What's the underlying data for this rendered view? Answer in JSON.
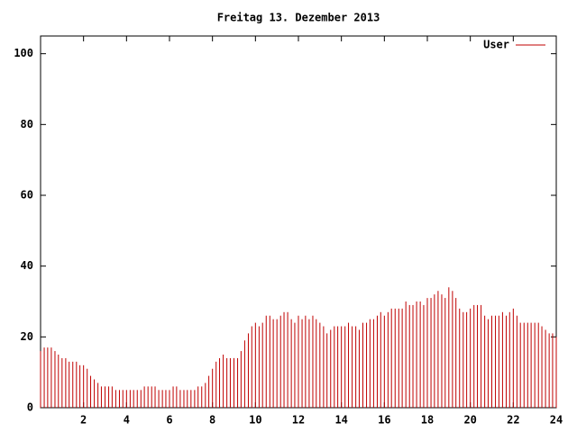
{
  "chart_data": {
    "type": "impulse",
    "title": "Freitag 13. Dezember 2013",
    "x": [
      0,
      0.17,
      0.33,
      0.5,
      0.67,
      0.83,
      1,
      1.17,
      1.33,
      1.5,
      1.67,
      1.83,
      2,
      2.17,
      2.33,
      2.5,
      2.67,
      2.83,
      3,
      3.17,
      3.33,
      3.5,
      3.67,
      3.83,
      4,
      4.17,
      4.33,
      4.5,
      4.67,
      4.83,
      5,
      5.17,
      5.33,
      5.5,
      5.67,
      5.83,
      6,
      6.17,
      6.33,
      6.5,
      6.67,
      6.83,
      7,
      7.17,
      7.33,
      7.5,
      7.67,
      7.83,
      8,
      8.17,
      8.33,
      8.5,
      8.67,
      8.83,
      9,
      9.17,
      9.33,
      9.5,
      9.67,
      9.83,
      10,
      10.17,
      10.33,
      10.5,
      10.67,
      10.83,
      11,
      11.17,
      11.33,
      11.5,
      11.67,
      11.83,
      12,
      12.17,
      12.33,
      12.5,
      12.67,
      12.83,
      13,
      13.17,
      13.33,
      13.5,
      13.67,
      13.83,
      14,
      14.17,
      14.33,
      14.5,
      14.67,
      14.83,
      15,
      15.17,
      15.33,
      15.5,
      15.67,
      15.83,
      16,
      16.17,
      16.33,
      16.5,
      16.67,
      16.83,
      17,
      17.17,
      17.33,
      17.5,
      17.67,
      17.83,
      18,
      18.17,
      18.33,
      18.5,
      18.67,
      18.83,
      19,
      19.17,
      19.33,
      19.5,
      19.67,
      19.83,
      20,
      20.17,
      20.33,
      20.5,
      20.67,
      20.83,
      21,
      21.17,
      21.33,
      21.5,
      21.67,
      21.83,
      22,
      22.17,
      22.33,
      22.5,
      22.67,
      22.83,
      23,
      23.17,
      23.33,
      23.5,
      23.67,
      23.83,
      24
    ],
    "series": [
      {
        "name": "User",
        "color": "#c00000",
        "values": [
          16,
          17,
          17,
          17,
          16,
          15,
          14,
          14,
          13,
          13,
          13,
          12,
          12,
          11,
          9,
          8,
          7,
          6,
          6,
          6,
          6,
          5,
          5,
          5,
          5,
          5,
          5,
          5,
          5,
          6,
          6,
          6,
          6,
          5,
          5,
          5,
          5,
          6,
          6,
          5,
          5,
          5,
          5,
          5,
          6,
          6,
          7,
          9,
          11,
          13,
          14,
          15,
          14,
          14,
          14,
          14,
          16,
          19,
          21,
          23,
          24,
          23,
          24,
          26,
          26,
          25,
          25,
          26,
          27,
          27,
          25,
          24,
          26,
          25,
          26,
          25,
          26,
          25,
          24,
          23,
          21,
          22,
          23,
          23,
          23,
          23,
          24,
          23,
          23,
          22,
          24,
          24,
          25,
          25,
          26,
          27,
          26,
          27,
          28,
          28,
          28,
          28,
          30,
          29,
          29,
          30,
          30,
          29,
          31,
          31,
          32,
          33,
          32,
          31,
          34,
          33,
          31,
          28,
          27,
          27,
          28,
          29,
          29,
          29,
          26,
          25,
          26,
          26,
          26,
          27,
          26,
          27,
          28,
          26,
          24,
          24,
          24,
          24,
          24,
          24,
          23,
          22,
          21,
          21,
          20
        ]
      }
    ],
    "xlim": [
      0,
      24
    ],
    "xticks": [
      2,
      4,
      6,
      8,
      10,
      12,
      14,
      16,
      18,
      20,
      22,
      24
    ],
    "ylim": [
      0,
      105
    ],
    "yticks": [
      0,
      20,
      40,
      60,
      80,
      100
    ],
    "legend": "top right"
  }
}
